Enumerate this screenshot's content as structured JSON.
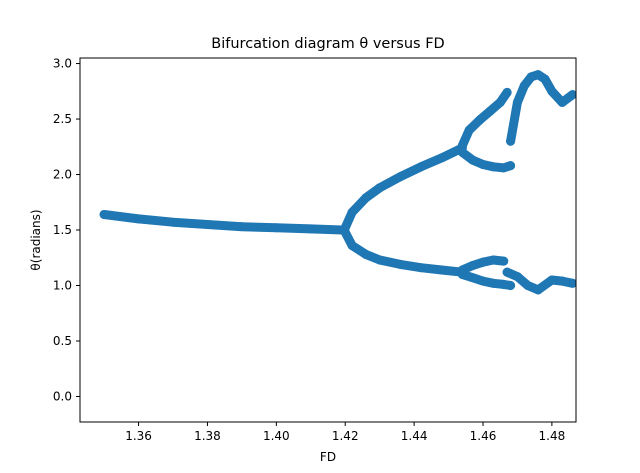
{
  "chart_data": {
    "type": "scatter",
    "title": "Bifurcation diagram  θ versus FD",
    "xlabel": "FD",
    "ylabel": "θ(radians)",
    "xlim": [
      1.343,
      1.487
    ],
    "ylim": [
      -0.23,
      3.05
    ],
    "xticks": [
      1.36,
      1.38,
      1.4,
      1.42,
      1.44,
      1.46,
      1.48
    ],
    "xtick_labels": [
      "1.36",
      "1.38",
      "1.40",
      "1.42",
      "1.44",
      "1.46",
      "1.48"
    ],
    "yticks": [
      0.0,
      0.5,
      1.0,
      1.5,
      2.0,
      2.5,
      3.0
    ],
    "ytick_labels": [
      "0.0",
      "0.5",
      "1.0",
      "1.5",
      "2.0",
      "2.5",
      "3.0"
    ],
    "grid": false,
    "legend": "none",
    "marker_color": "#1f77b4",
    "series": [
      {
        "x": [
          1.35,
          1.36,
          1.37,
          1.38,
          1.39,
          1.4,
          1.41,
          1.419
        ],
        "y": [
          1.64,
          1.6,
          1.57,
          1.55,
          1.53,
          1.52,
          1.51,
          1.5
        ]
      },
      {
        "x": [
          1.42,
          1.422,
          1.426,
          1.43,
          1.436,
          1.442,
          1.448,
          1.454
        ],
        "y": [
          1.52,
          1.66,
          1.79,
          1.88,
          1.98,
          2.07,
          2.15,
          2.24
        ]
      },
      {
        "x": [
          1.42,
          1.422,
          1.426,
          1.43,
          1.436,
          1.442,
          1.448,
          1.454
        ],
        "y": [
          1.48,
          1.36,
          1.28,
          1.23,
          1.19,
          1.16,
          1.14,
          1.12
        ]
      },
      {
        "x": [
          1.454,
          1.456,
          1.459,
          1.462,
          1.465,
          1.467
        ],
        "y": [
          2.26,
          2.4,
          2.49,
          2.57,
          2.65,
          2.74
        ]
      },
      {
        "x": [
          1.454,
          1.457,
          1.46,
          1.463,
          1.466,
          1.468
        ],
        "y": [
          2.2,
          2.13,
          2.09,
          2.07,
          2.06,
          2.08
        ]
      },
      {
        "x": [
          1.468,
          1.47,
          1.472,
          1.474,
          1.476,
          1.478,
          1.48,
          1.483,
          1.486
        ],
        "y": [
          2.3,
          2.65,
          2.8,
          2.88,
          2.9,
          2.86,
          2.75,
          2.65,
          2.72
        ]
      },
      {
        "x": [
          1.454,
          1.457,
          1.46,
          1.463,
          1.466
        ],
        "y": [
          1.14,
          1.18,
          1.21,
          1.23,
          1.22
        ]
      },
      {
        "x": [
          1.454,
          1.457,
          1.46,
          1.463,
          1.466,
          1.468
        ],
        "y": [
          1.1,
          1.07,
          1.04,
          1.02,
          1.01,
          1.0
        ]
      },
      {
        "x": [
          1.467,
          1.47,
          1.473,
          1.476,
          1.48,
          1.483,
          1.486
        ],
        "y": [
          1.12,
          1.08,
          1.0,
          0.96,
          1.05,
          1.04,
          1.02
        ]
      }
    ]
  }
}
